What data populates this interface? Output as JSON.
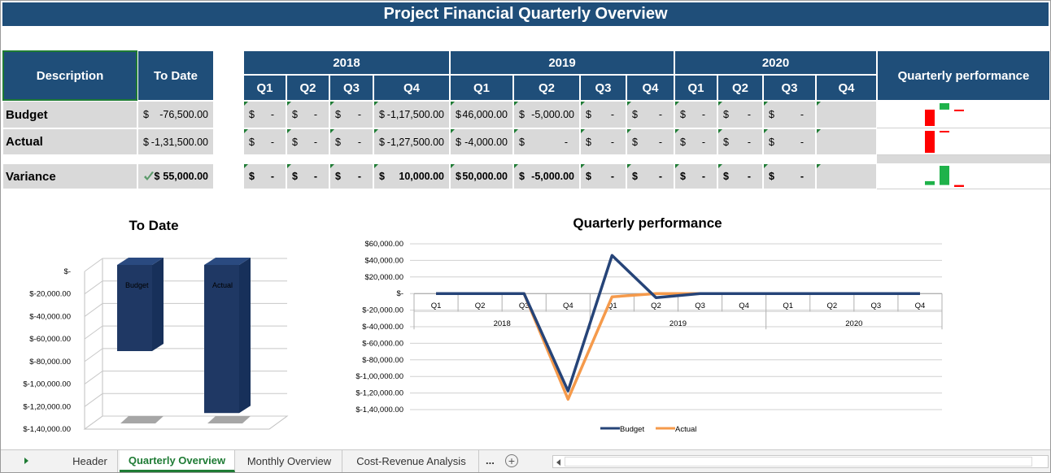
{
  "header": {
    "title": "Project Financial Quarterly Overview"
  },
  "table": {
    "description_header": "Description",
    "to_date_header": "To Date",
    "years": [
      "2018",
      "2019",
      "2020"
    ],
    "quarters": [
      "Q1",
      "Q2",
      "Q3",
      "Q4"
    ],
    "performance_header": "Quarterly performance",
    "currency_symbol": "$",
    "rows": [
      {
        "label": "Budget",
        "to_date": "-76,500.00",
        "quarters": [
          "-",
          "-",
          "-",
          "-1,17,500.00",
          "46,000.00",
          "-5,000.00",
          "-",
          "-",
          "-",
          "-",
          "-",
          null
        ],
        "sparkline": [
          -117500,
          46000,
          -5000
        ]
      },
      {
        "label": "Actual",
        "to_date": "-1,31,500.00",
        "quarters": [
          "-",
          "-",
          "-",
          "-1,27,500.00",
          "-4,000.00",
          "-",
          "-",
          "-",
          "-",
          "-",
          "-",
          null
        ],
        "sparkline": [
          -127500,
          -4000
        ]
      },
      {
        "label": "Variance",
        "to_date": "55,000.00",
        "quarters": [
          "-",
          "-",
          "-",
          "10,000.00",
          "50,000.00",
          "-5,000.00",
          "-",
          "-",
          "-",
          "-",
          "-",
          null
        ],
        "sparkline": [
          10000,
          50000,
          -5000
        ]
      }
    ]
  },
  "chart_data": [
    {
      "type": "bar",
      "title": "To Date",
      "categories": [
        "Budget",
        "Actual"
      ],
      "values": [
        -76500,
        -131500
      ],
      "color": "#1f3864",
      "ylim": [
        -140000,
        0
      ],
      "yticks": [
        {
          "value": 0,
          "label": "$-"
        },
        {
          "value": -20000,
          "label": "$-20,000.00"
        },
        {
          "value": -40000,
          "label": "$-40,000.00"
        },
        {
          "value": -60000,
          "label": "$-60,000.00"
        },
        {
          "value": -80000,
          "label": "$-80,000.00"
        },
        {
          "value": -100000,
          "label": "$-1,00,000.00"
        },
        {
          "value": -120000,
          "label": "$-1,20,000.00"
        },
        {
          "value": -140000,
          "label": "$-1,40,000.00"
        }
      ],
      "grid": true
    },
    {
      "type": "line",
      "title": "Quarterly performance",
      "categories": [
        "Q1",
        "Q2",
        "Q3",
        "Q4",
        "Q1",
        "Q2",
        "Q3",
        "Q4",
        "Q1",
        "Q2",
        "Q3",
        "Q4"
      ],
      "groups": [
        "2018",
        "2019",
        "2020"
      ],
      "series": [
        {
          "name": "Budget",
          "color": "#264478",
          "values": [
            0,
            0,
            0,
            -117500,
            46000,
            -5000,
            0,
            0,
            0,
            0,
            0,
            0
          ]
        },
        {
          "name": "Actual",
          "color": "#f59a4b",
          "values": [
            0,
            0,
            0,
            -127500,
            -4000,
            0,
            0,
            0,
            0,
            0,
            0,
            0
          ]
        }
      ],
      "ylim": [
        -140000,
        60000
      ],
      "yticks": [
        {
          "value": 60000,
          "label": "$60,000.00"
        },
        {
          "value": 40000,
          "label": "$40,000.00"
        },
        {
          "value": 20000,
          "label": "$20,000.00"
        },
        {
          "value": 0,
          "label": "$-"
        },
        {
          "value": -20000,
          "label": "$-20,000.00"
        },
        {
          "value": -40000,
          "label": "$-40,000.00"
        },
        {
          "value": -60000,
          "label": "$-60,000.00"
        },
        {
          "value": -80000,
          "label": "$-80,000.00"
        },
        {
          "value": -100000,
          "label": "$-1,00,000.00"
        },
        {
          "value": -120000,
          "label": "$-1,20,000.00"
        },
        {
          "value": -140000,
          "label": "$-1,40,000.00"
        }
      ],
      "grid": true,
      "legend": "bottom"
    }
  ],
  "tabs": {
    "sheets": [
      "Header",
      "Quarterly Overview",
      "Monthly Overview",
      "Cost-Revenue Analysis"
    ],
    "more": "...",
    "active": 1
  }
}
